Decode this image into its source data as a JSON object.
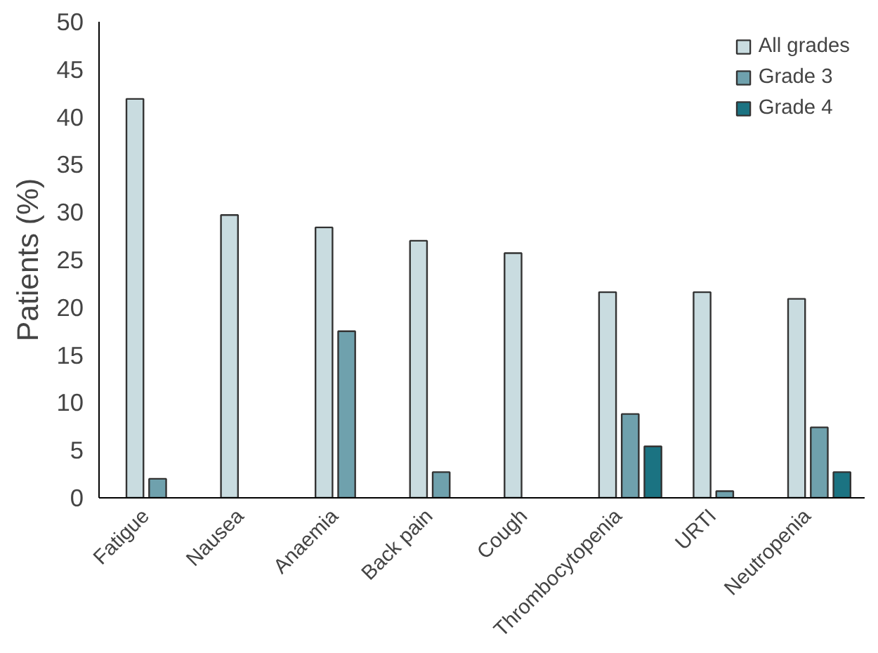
{
  "chart_data": {
    "type": "bar",
    "ylabel": "Patients (%)",
    "categories": [
      "Fatigue",
      "Nausea",
      "Anaemia",
      "Back pain",
      "Cough",
      "Thrombocytopenia",
      "URTI",
      "Neutropenia"
    ],
    "series": [
      {
        "name": "All grades",
        "color": "#c9dce0",
        "values": [
          41.9,
          29.7,
          28.4,
          27.0,
          25.7,
          21.6,
          21.6,
          20.9
        ]
      },
      {
        "name": "Grade 3",
        "color": "#6fa1ad",
        "values": [
          2.0,
          null,
          17.5,
          2.7,
          null,
          8.8,
          0.7,
          7.4
        ]
      },
      {
        "name": "Grade 4",
        "color": "#1b7382",
        "values": [
          null,
          null,
          null,
          null,
          null,
          5.4,
          null,
          2.7
        ]
      }
    ],
    "ylim": [
      0,
      50
    ],
    "yticks": [
      0,
      5,
      10,
      15,
      20,
      25,
      30,
      35,
      40,
      45,
      50
    ],
    "grid": false,
    "legend": "top right"
  }
}
